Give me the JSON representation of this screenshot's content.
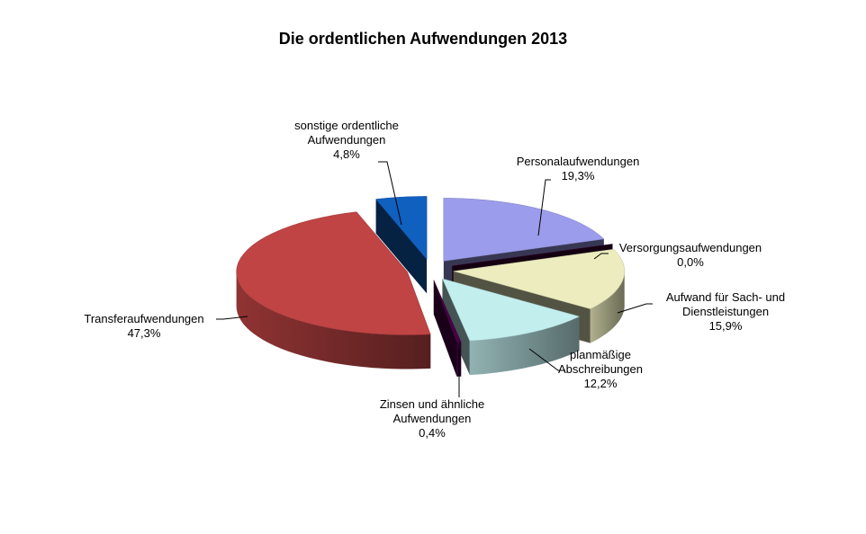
{
  "chart_data": {
    "type": "pie3d",
    "title": "Die ordentlichen Aufwendungen 2013",
    "categories": [
      "Personalaufwendungen",
      "Versorgungsaufwendungen",
      "Aufwand für Sach- und Dienstleistungen",
      "planmäßige Abschreibungen",
      "Zinsen und ähnliche Aufwendungen",
      "Transferaufwendungen",
      "sonstige ordentliche Aufwendungen"
    ],
    "values": [
      19.3,
      0.0,
      15.9,
      12.2,
      0.4,
      47.3,
      4.8
    ],
    "value_labels": [
      "19,3%",
      "0,0%",
      "15,9%",
      "12,2%",
      "0,4%",
      "47,3%",
      "4,8%"
    ],
    "colors": [
      "#9c9cec",
      "#3a0030",
      "#ececbe",
      "#c2eeee",
      "#4a0048",
      "#c04444",
      "#1060c0"
    ]
  }
}
